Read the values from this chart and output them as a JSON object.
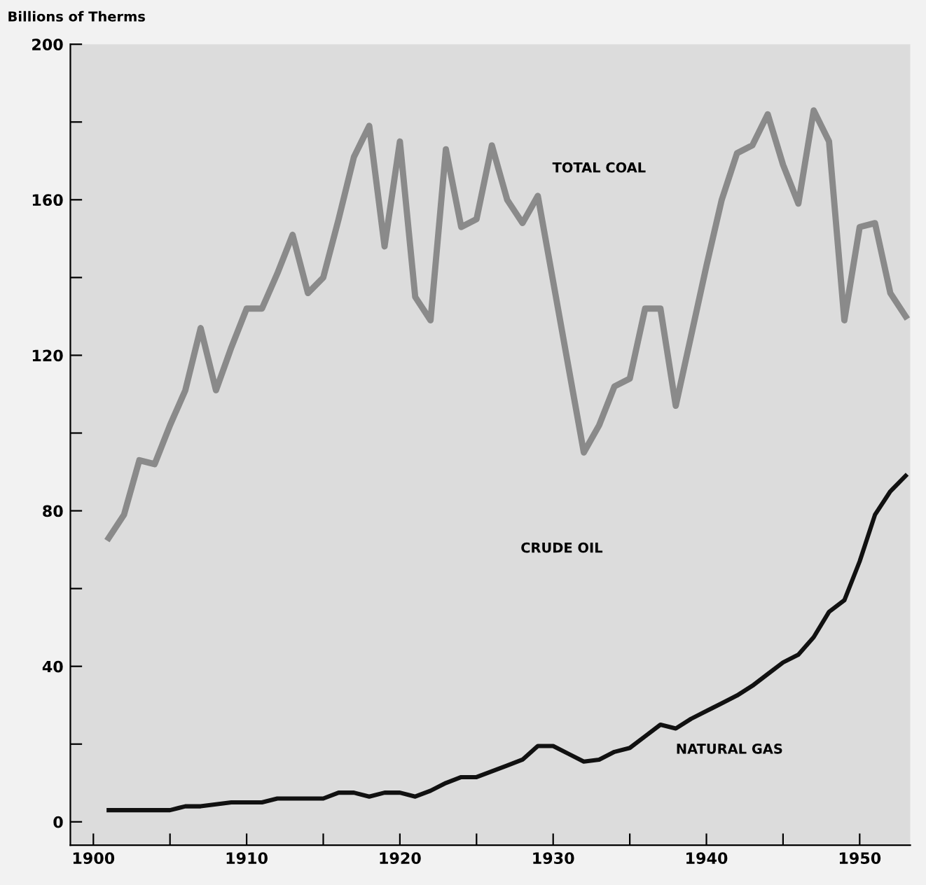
{
  "chart_data": {
    "type": "line",
    "ylabel": "Billions of Therms",
    "x": [
      1901,
      1902,
      1903,
      1904,
      1905,
      1906,
      1907,
      1908,
      1909,
      1910,
      1911,
      1912,
      1913,
      1914,
      1915,
      1916,
      1917,
      1918,
      1919,
      1920,
      1921,
      1922,
      1923,
      1924,
      1925,
      1926,
      1927,
      1928,
      1929,
      1930,
      1931,
      1932,
      1933,
      1934,
      1935,
      1936,
      1937,
      1938,
      1939,
      1940,
      1941,
      1942,
      1943,
      1944,
      1945,
      1946,
      1947,
      1948,
      1949,
      1950,
      1951,
      1952,
      1953
    ],
    "series": [
      {
        "name": "TOTAL COAL",
        "color": "#8a8a8a",
        "values": [
          73,
          79,
          93,
          92,
          102,
          111,
          127,
          111,
          122,
          132,
          132,
          141,
          151,
          136,
          140,
          155,
          171,
          179,
          148,
          175,
          135,
          129,
          173,
          153,
          155,
          174,
          160,
          154,
          161,
          139,
          117,
          95,
          102,
          112,
          114,
          132,
          132,
          107,
          125,
          143,
          160,
          172,
          174,
          182,
          169,
          159,
          183,
          175,
          129,
          153,
          154,
          136,
          130
        ]
      },
      {
        "name": "NATURAL GAS",
        "color": "#111111",
        "values": [
          3,
          3,
          3,
          3,
          3,
          4,
          4,
          4.5,
          5,
          5,
          5,
          6,
          6,
          6,
          6,
          7.5,
          7.5,
          6.5,
          7.5,
          7.5,
          6.5,
          8,
          10,
          11.5,
          11.5,
          13,
          14.5,
          16,
          19.5,
          19.5,
          17.5,
          15.5,
          16,
          18,
          19,
          22,
          25,
          24,
          26.5,
          28.5,
          30.5,
          32.5,
          35,
          38,
          41,
          43,
          47.5,
          54,
          57,
          67,
          79,
          85,
          89
        ]
      }
    ],
    "annotations": [
      "CRUDE OIL"
    ],
    "xlim": [
      1898.5,
      1953.3
    ],
    "ylim": [
      -6,
      200
    ],
    "xticks": [
      1900,
      {
        "value": 1905,
        "label": null
      },
      1910,
      {
        "value": 1915,
        "label": null
      },
      1920,
      {
        "value": 1925,
        "label": null
      },
      1930,
      {
        "value": 1935,
        "label": null
      },
      1940,
      {
        "value": 1945,
        "label": null
      },
      1950
    ],
    "yticks": [
      0,
      {
        "value": 20,
        "label": null
      },
      40,
      {
        "value": 60,
        "label": null
      },
      80,
      {
        "value": 100,
        "label": null
      },
      120,
      {
        "value": 140,
        "label": null
      },
      160,
      {
        "value": 180,
        "label": null
      },
      200
    ],
    "grid": false,
    "legend": false,
    "marker": "none",
    "line_style": "solid"
  }
}
